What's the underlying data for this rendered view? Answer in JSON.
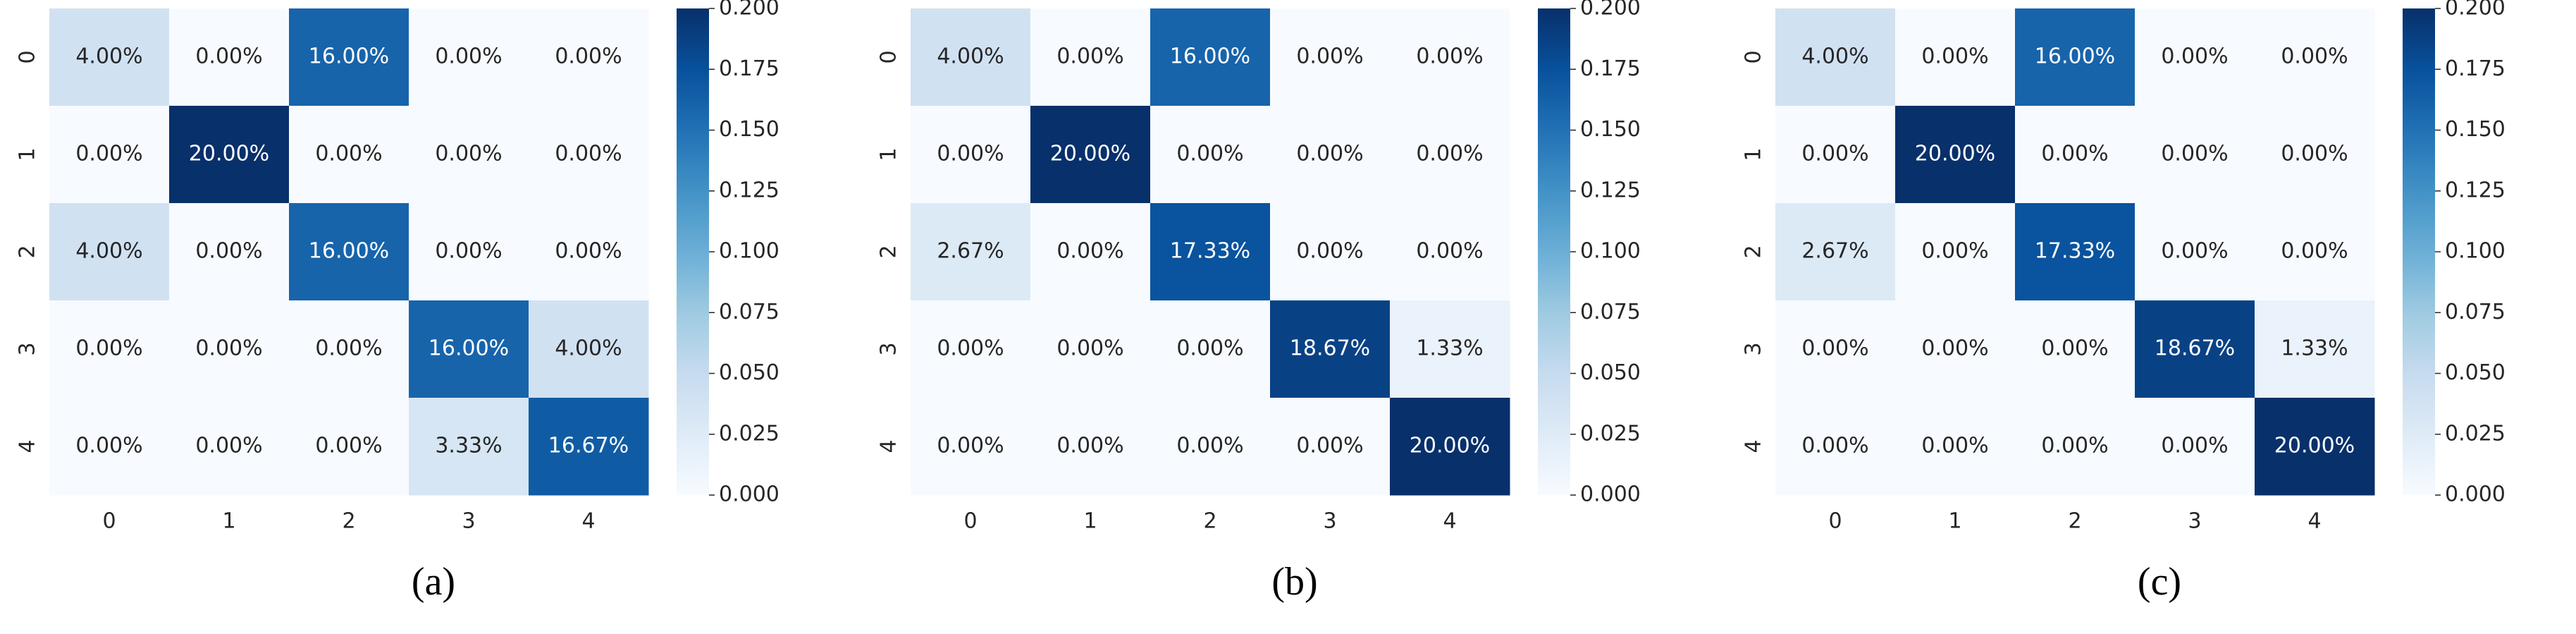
{
  "chart_data": [
    {
      "type": "heatmap",
      "caption": "(a)",
      "colormap": "Blues",
      "x_categories": [
        "0",
        "1",
        "2",
        "3",
        "4"
      ],
      "y_categories": [
        "0",
        "1",
        "2",
        "3",
        "4"
      ],
      "values": [
        [
          0.04,
          0,
          0.16,
          0,
          0
        ],
        [
          0,
          0.2,
          0,
          0,
          0
        ],
        [
          0.04,
          0,
          0.16,
          0,
          0
        ],
        [
          0,
          0,
          0,
          0.16,
          0.04
        ],
        [
          0,
          0,
          0,
          0.0333,
          0.1667
        ]
      ],
      "value_labels": [
        [
          "4.00%",
          "0.00%",
          "16.00%",
          "0.00%",
          "0.00%"
        ],
        [
          "0.00%",
          "20.00%",
          "0.00%",
          "0.00%",
          "0.00%"
        ],
        [
          "4.00%",
          "0.00%",
          "16.00%",
          "0.00%",
          "0.00%"
        ],
        [
          "0.00%",
          "0.00%",
          "0.00%",
          "16.00%",
          "4.00%"
        ],
        [
          "0.00%",
          "0.00%",
          "0.00%",
          "3.33%",
          "16.67%"
        ]
      ],
      "clim": [
        0,
        0.2
      ],
      "cticks": [
        {
          "value": 0,
          "label": "0.000"
        },
        {
          "value": 0.025,
          "label": "0.025"
        },
        {
          "value": 0.05,
          "label": "0.050"
        },
        {
          "value": 0.075,
          "label": "0.075"
        },
        {
          "value": 0.1,
          "label": "0.100"
        },
        {
          "value": 0.125,
          "label": "0.125"
        },
        {
          "value": 0.15,
          "label": "0.150"
        },
        {
          "value": 0.175,
          "label": "0.175"
        },
        {
          "value": 0.2,
          "label": "0.200"
        }
      ]
    },
    {
      "type": "heatmap",
      "caption": "(b)",
      "colormap": "Blues",
      "x_categories": [
        "0",
        "1",
        "2",
        "3",
        "4"
      ],
      "y_categories": [
        "0",
        "1",
        "2",
        "3",
        "4"
      ],
      "values": [
        [
          0.04,
          0,
          0.16,
          0,
          0
        ],
        [
          0,
          0.2,
          0,
          0,
          0
        ],
        [
          0.0267,
          0,
          0.1733,
          0,
          0
        ],
        [
          0,
          0,
          0,
          0.1867,
          0.0133
        ],
        [
          0,
          0,
          0,
          0,
          0.2
        ]
      ],
      "value_labels": [
        [
          "4.00%",
          "0.00%",
          "16.00%",
          "0.00%",
          "0.00%"
        ],
        [
          "0.00%",
          "20.00%",
          "0.00%",
          "0.00%",
          "0.00%"
        ],
        [
          "2.67%",
          "0.00%",
          "17.33%",
          "0.00%",
          "0.00%"
        ],
        [
          "0.00%",
          "0.00%",
          "0.00%",
          "18.67%",
          "1.33%"
        ],
        [
          "0.00%",
          "0.00%",
          "0.00%",
          "0.00%",
          "20.00%"
        ]
      ],
      "clim": [
        0,
        0.2
      ],
      "cticks": [
        {
          "value": 0,
          "label": "0.000"
        },
        {
          "value": 0.025,
          "label": "0.025"
        },
        {
          "value": 0.05,
          "label": "0.050"
        },
        {
          "value": 0.075,
          "label": "0.075"
        },
        {
          "value": 0.1,
          "label": "0.100"
        },
        {
          "value": 0.125,
          "label": "0.125"
        },
        {
          "value": 0.15,
          "label": "0.150"
        },
        {
          "value": 0.175,
          "label": "0.175"
        },
        {
          "value": 0.2,
          "label": "0.200"
        }
      ]
    },
    {
      "type": "heatmap",
      "caption": "(c)",
      "colormap": "Blues",
      "x_categories": [
        "0",
        "1",
        "2",
        "3",
        "4"
      ],
      "y_categories": [
        "0",
        "1",
        "2",
        "3",
        "4"
      ],
      "values": [
        [
          0.04,
          0,
          0.16,
          0,
          0
        ],
        [
          0,
          0.2,
          0,
          0,
          0
        ],
        [
          0.0267,
          0,
          0.1733,
          0,
          0
        ],
        [
          0,
          0,
          0,
          0.1867,
          0.0133
        ],
        [
          0,
          0,
          0,
          0,
          0.2
        ]
      ],
      "value_labels": [
        [
          "4.00%",
          "0.00%",
          "16.00%",
          "0.00%",
          "0.00%"
        ],
        [
          "0.00%",
          "20.00%",
          "0.00%",
          "0.00%",
          "0.00%"
        ],
        [
          "2.67%",
          "0.00%",
          "17.33%",
          "0.00%",
          "0.00%"
        ],
        [
          "0.00%",
          "0.00%",
          "0.00%",
          "18.67%",
          "1.33%"
        ],
        [
          "0.00%",
          "0.00%",
          "0.00%",
          "0.00%",
          "20.00%"
        ]
      ],
      "clim": [
        0,
        0.2
      ],
      "cticks": [
        {
          "value": 0,
          "label": "0.000"
        },
        {
          "value": 0.025,
          "label": "0.025"
        },
        {
          "value": 0.05,
          "label": "0.050"
        },
        {
          "value": 0.075,
          "label": "0.075"
        },
        {
          "value": 0.1,
          "label": "0.100"
        },
        {
          "value": 0.125,
          "label": "0.125"
        },
        {
          "value": 0.15,
          "label": "0.150"
        },
        {
          "value": 0.175,
          "label": "0.175"
        },
        {
          "value": 0.2,
          "label": "0.200"
        }
      ]
    }
  ]
}
